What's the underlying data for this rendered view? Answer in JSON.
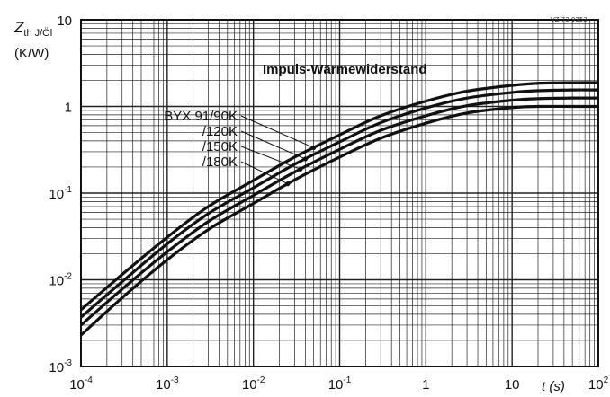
{
  "chart_data": {
    "type": "line",
    "title": "Impuls-Wärmewiderstand",
    "reference": "VZ 73 9353",
    "ylabel": {
      "main": "Z",
      "sub": "th J/Öl",
      "unit": "(K/W)"
    },
    "xlabel": "t (s)",
    "xscale": "log",
    "yscale": "log",
    "xlim": [
      0.0001,
      100
    ],
    "ylim": [
      0.001,
      10
    ],
    "grid": true,
    "x_ticks": [
      {
        "value": 0.0001,
        "base": "10",
        "exp": "-4"
      },
      {
        "value": 0.001,
        "base": "10",
        "exp": "-3"
      },
      {
        "value": 0.01,
        "base": "10",
        "exp": "-2"
      },
      {
        "value": 0.1,
        "base": "10",
        "exp": "-1"
      },
      {
        "value": 1,
        "base": "1",
        "exp": ""
      },
      {
        "value": 10,
        "base": "10",
        "exp": ""
      },
      {
        "value": 100,
        "base": "10",
        "exp": "2"
      }
    ],
    "y_ticks": [
      {
        "value": 10,
        "base": "10",
        "exp": ""
      },
      {
        "value": 1,
        "base": "1",
        "exp": ""
      },
      {
        "value": 0.1,
        "base": "10",
        "exp": "-1"
      },
      {
        "value": 0.01,
        "base": "10",
        "exp": "-2"
      },
      {
        "value": 0.001,
        "base": "10",
        "exp": "-3"
      }
    ],
    "series": [
      {
        "name": "BYX 91/90K",
        "anchor_x": 0.05,
        "x": [
          0.0001,
          0.0003,
          0.001,
          0.003,
          0.01,
          0.03,
          0.1,
          0.3,
          1,
          3,
          10,
          20,
          50,
          100
        ],
        "y": [
          0.0045,
          0.0115,
          0.031,
          0.07,
          0.14,
          0.26,
          0.47,
          0.78,
          1.15,
          1.5,
          1.75,
          1.85,
          1.88,
          1.88
        ]
      },
      {
        "name": "/120K",
        "anchor_x": 0.04,
        "x": [
          0.0001,
          0.0003,
          0.001,
          0.003,
          0.01,
          0.03,
          0.1,
          0.3,
          1,
          3,
          10,
          20,
          50,
          100
        ],
        "y": [
          0.0037,
          0.0095,
          0.026,
          0.058,
          0.115,
          0.215,
          0.39,
          0.65,
          0.96,
          1.25,
          1.45,
          1.52,
          1.55,
          1.55
        ]
      },
      {
        "name": "/150K",
        "anchor_x": 0.035,
        "x": [
          0.0001,
          0.0003,
          0.001,
          0.003,
          0.01,
          0.03,
          0.1,
          0.3,
          1,
          3,
          10,
          20,
          50,
          100
        ],
        "y": [
          0.003,
          0.0078,
          0.021,
          0.047,
          0.094,
          0.175,
          0.32,
          0.53,
          0.78,
          1.02,
          1.18,
          1.23,
          1.25,
          1.25
        ]
      },
      {
        "name": "/180K",
        "anchor_x": 0.025,
        "x": [
          0.0001,
          0.0003,
          0.001,
          0.003,
          0.01,
          0.03,
          0.1,
          0.3,
          1,
          3,
          10,
          20,
          50,
          100
        ],
        "y": [
          0.0023,
          0.0062,
          0.017,
          0.038,
          0.076,
          0.142,
          0.26,
          0.43,
          0.64,
          0.84,
          0.97,
          1.0,
          1.0,
          1.0
        ]
      }
    ]
  }
}
